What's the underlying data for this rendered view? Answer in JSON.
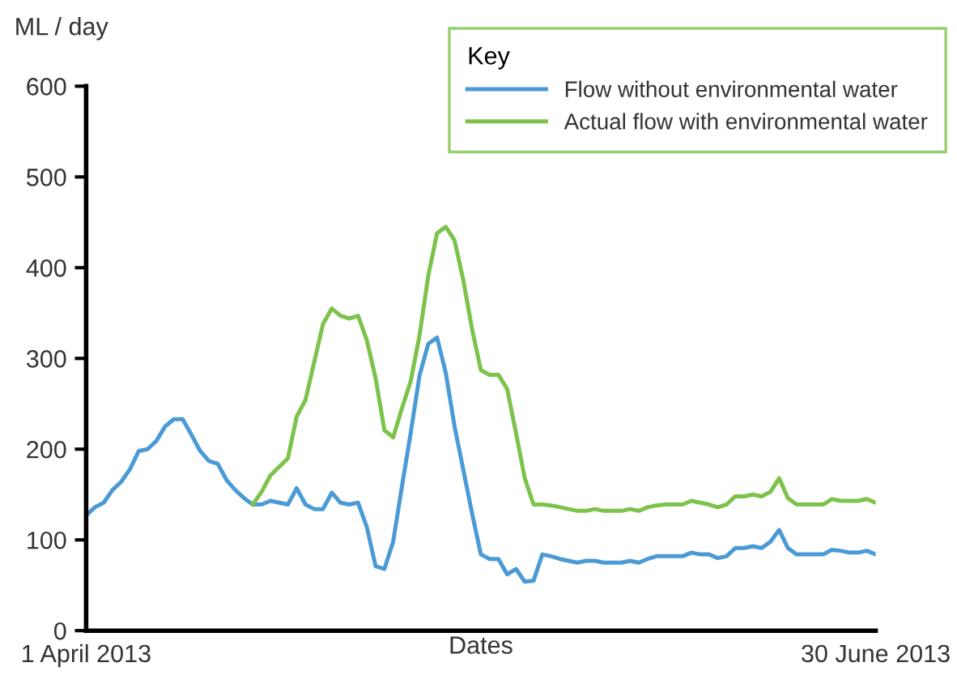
{
  "chart_data": {
    "type": "line",
    "ylabel": "ML / day",
    "xlabel": "Dates",
    "legend_title": "Key",
    "legend": "top right",
    "grid": false,
    "marker": "none",
    "line_style": "solid",
    "x": [
      "2013-04-01",
      "2013-04-02",
      "2013-04-03",
      "2013-04-04",
      "2013-04-05",
      "2013-04-06",
      "2013-04-07",
      "2013-04-08",
      "2013-04-09",
      "2013-04-10",
      "2013-04-11",
      "2013-04-12",
      "2013-04-13",
      "2013-04-14",
      "2013-04-15",
      "2013-04-16",
      "2013-04-17",
      "2013-04-18",
      "2013-04-19",
      "2013-04-20",
      "2013-04-21",
      "2013-04-22",
      "2013-04-24",
      "2013-04-25",
      "2013-04-26",
      "2013-04-27",
      "2013-04-28",
      "2013-04-29",
      "2013-04-30",
      "2013-05-01",
      "2013-05-02",
      "2013-05-03",
      "2013-05-04",
      "2013-05-05",
      "2013-05-06",
      "2013-05-07",
      "2013-05-08",
      "2013-05-09",
      "2013-05-10",
      "2013-05-11",
      "2013-05-12",
      "2013-05-13",
      "2013-05-14",
      "2013-05-15",
      "2013-05-16",
      "2013-05-17",
      "2013-05-18",
      "2013-05-19",
      "2013-05-20",
      "2013-05-21",
      "2013-05-22",
      "2013-05-23",
      "2013-05-24",
      "2013-05-25",
      "2013-05-26",
      "2013-05-27",
      "2013-05-28",
      "2013-05-29",
      "2013-05-30",
      "2013-05-31",
      "2013-06-01",
      "2013-06-02",
      "2013-06-03",
      "2013-06-04",
      "2013-06-05",
      "2013-06-06",
      "2013-06-08",
      "2013-06-09",
      "2013-06-10",
      "2013-06-11",
      "2013-06-12",
      "2013-06-13",
      "2013-06-14",
      "2013-06-15",
      "2013-06-16",
      "2013-06-17",
      "2013-06-18",
      "2013-06-19",
      "2013-06-20",
      "2013-06-21",
      "2013-06-22",
      "2013-06-23",
      "2013-06-24",
      "2013-06-25",
      "2013-06-26",
      "2013-06-27",
      "2013-06-28",
      "2013-06-29",
      "2013-06-30"
    ],
    "xlim": [
      "2013-04-01",
      "2013-06-30"
    ],
    "xticks": [
      {
        "value": "2013-04-01",
        "label": "1 April 2013"
      },
      {
        "value": "2013-06-30",
        "label": "30 June 2013"
      }
    ],
    "ylim": [
      0,
      600
    ],
    "yticks": [
      0,
      100,
      200,
      300,
      400,
      500,
      600
    ],
    "series": [
      {
        "name": "Flow without environmental water",
        "color": "#4a9ad6",
        "values": [
          127,
          136,
          141,
          155,
          164,
          178,
          198,
          200,
          209,
          225,
          233,
          233,
          216,
          198,
          187,
          184,
          166,
          155,
          146,
          139,
          139,
          143,
          139,
          157,
          139,
          134,
          134,
          152,
          141,
          139,
          141,
          114,
          71,
          68,
          98,
          159,
          218,
          281,
          316,
          323,
          284,
          225,
          177,
          129,
          84,
          79,
          79,
          62,
          68,
          54,
          55,
          84,
          82,
          79,
          77,
          75,
          77,
          77,
          75,
          75,
          75,
          77,
          75,
          79,
          82,
          82,
          82,
          86,
          84,
          84,
          80,
          82,
          91,
          91,
          93,
          91,
          98,
          111,
          91,
          84,
          84,
          84,
          84,
          89,
          88,
          86,
          86,
          88,
          84
        ]
      },
      {
        "name": "Actual flow with environmental water",
        "color": "#7dc24a",
        "values": [
          null,
          null,
          null,
          null,
          null,
          null,
          null,
          null,
          null,
          null,
          null,
          null,
          null,
          null,
          null,
          null,
          null,
          null,
          null,
          139,
          153,
          171,
          190,
          236,
          254,
          296,
          338,
          355,
          347,
          344,
          347,
          320,
          278,
          221,
          213,
          245,
          275,
          325,
          391,
          438,
          445,
          430,
          386,
          332,
          287,
          282,
          282,
          266,
          218,
          168,
          139,
          139,
          138,
          136,
          134,
          132,
          132,
          134,
          132,
          132,
          132,
          134,
          132,
          136,
          138,
          139,
          139,
          143,
          141,
          139,
          136,
          139,
          148,
          148,
          150,
          148,
          153,
          168,
          146,
          139,
          139,
          139,
          139,
          145,
          143,
          143,
          143,
          145,
          141
        ]
      }
    ]
  }
}
